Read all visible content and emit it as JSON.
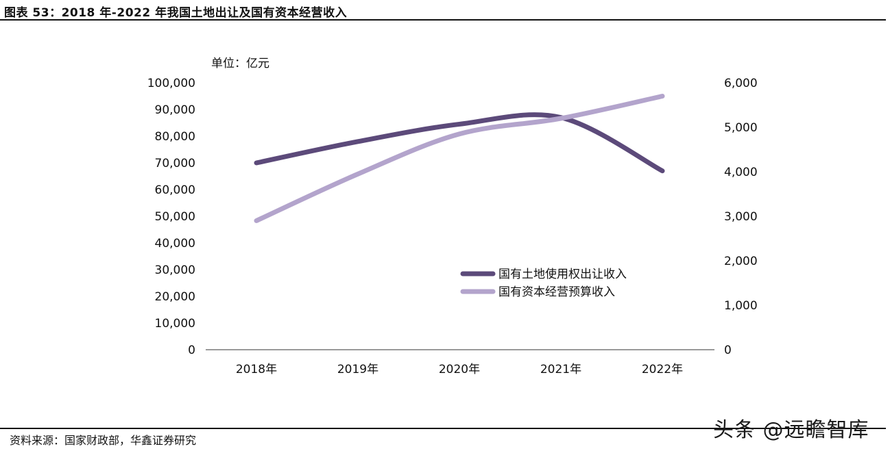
{
  "header": {
    "title": "图表 53：2018 年-2022 年我国土地出让及国有资本经营收入"
  },
  "footer": {
    "source": "资料来源：国家财政部，华鑫证券研究",
    "watermark": "头条 @远瞻智库"
  },
  "chart_data": {
    "type": "line",
    "unit_label": "单位：亿元",
    "categories": [
      "2018年",
      "2019年",
      "2020年",
      "2021年",
      "2022年"
    ],
    "y_left": {
      "ylim": [
        0,
        100000
      ],
      "ticks": [
        "0",
        "10,000",
        "20,000",
        "30,000",
        "40,000",
        "50,000",
        "60,000",
        "70,000",
        "80,000",
        "90,000",
        "100,000"
      ]
    },
    "y_right": {
      "ylim": [
        0,
        6000
      ],
      "ticks": [
        "0",
        "1,000",
        "2,000",
        "3,000",
        "4,000",
        "5,000",
        "6,000"
      ]
    },
    "series": [
      {
        "name": "国有土地使用权出让收入",
        "axis": "left",
        "color": "#5c4a7a",
        "values": [
          70000,
          78000,
          84500,
          87000,
          67000
        ]
      },
      {
        "name": "国有资本经营预算收入",
        "axis": "right",
        "color": "#b3a4cc",
        "values": [
          2900,
          3950,
          4850,
          5200,
          5700
        ]
      }
    ],
    "legend_position": "lower-right inside plot",
    "grid": false
  }
}
